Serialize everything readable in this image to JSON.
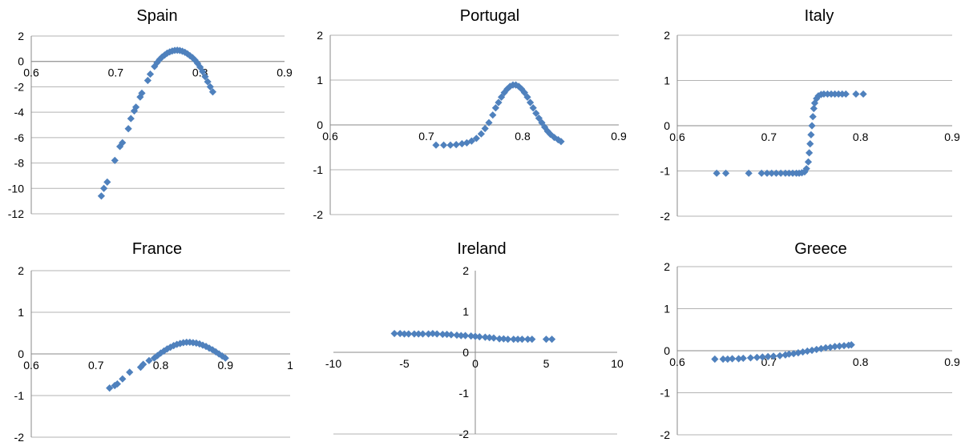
{
  "chart_data": [
    {
      "type": "scatter",
      "title": "Spain",
      "xlim": [
        0.6,
        0.9
      ],
      "ylim": [
        -12,
        2
      ],
      "xticks": [
        0.6,
        0.7,
        0.8,
        0.9
      ],
      "yticks": [
        -12,
        -10,
        -8,
        -6,
        -4,
        -2,
        0,
        2
      ],
      "grid": "horizontal",
      "marker_color": "#4F81BD",
      "points": [
        [
          0.683,
          -10.6
        ],
        [
          0.686,
          -10.0
        ],
        [
          0.69,
          -9.5
        ],
        [
          0.699,
          -7.8
        ],
        [
          0.705,
          -6.7
        ],
        [
          0.708,
          -6.4
        ],
        [
          0.715,
          -5.3
        ],
        [
          0.718,
          -4.5
        ],
        [
          0.722,
          -3.9
        ],
        [
          0.724,
          -3.6
        ],
        [
          0.729,
          -2.8
        ],
        [
          0.731,
          -2.5
        ],
        [
          0.738,
          -1.5
        ],
        [
          0.741,
          -1.0
        ],
        [
          0.746,
          -0.4
        ],
        [
          0.749,
          -0.1
        ],
        [
          0.752,
          0.15
        ],
        [
          0.755,
          0.35
        ],
        [
          0.758,
          0.5
        ],
        [
          0.761,
          0.65
        ],
        [
          0.764,
          0.75
        ],
        [
          0.767,
          0.82
        ],
        [
          0.77,
          0.87
        ],
        [
          0.773,
          0.88
        ],
        [
          0.776,
          0.86
        ],
        [
          0.779,
          0.8
        ],
        [
          0.782,
          0.72
        ],
        [
          0.785,
          0.6
        ],
        [
          0.788,
          0.45
        ],
        [
          0.791,
          0.3
        ],
        [
          0.794,
          0.1
        ],
        [
          0.797,
          -0.15
        ],
        [
          0.8,
          -0.45
        ],
        [
          0.803,
          -0.8
        ],
        [
          0.806,
          -1.2
        ],
        [
          0.809,
          -1.6
        ],
        [
          0.812,
          -2.0
        ],
        [
          0.815,
          -2.4
        ]
      ]
    },
    {
      "type": "scatter",
      "title": "Portugal",
      "xlim": [
        0.6,
        0.9
      ],
      "ylim": [
        -2,
        2
      ],
      "xticks": [
        0.6,
        0.7,
        0.8,
        0.9
      ],
      "yticks": [
        -2,
        -1,
        0,
        1,
        2
      ],
      "grid": "horizontal",
      "marker_color": "#4F81BD",
      "points": [
        [
          0.71,
          -0.45
        ],
        [
          0.718,
          -0.45
        ],
        [
          0.725,
          -0.45
        ],
        [
          0.731,
          -0.44
        ],
        [
          0.737,
          -0.42
        ],
        [
          0.742,
          -0.4
        ],
        [
          0.747,
          -0.36
        ],
        [
          0.752,
          -0.3
        ],
        [
          0.757,
          -0.2
        ],
        [
          0.761,
          -0.08
        ],
        [
          0.765,
          0.05
        ],
        [
          0.769,
          0.22
        ],
        [
          0.772,
          0.38
        ],
        [
          0.775,
          0.5
        ],
        [
          0.778,
          0.62
        ],
        [
          0.781,
          0.72
        ],
        [
          0.784,
          0.8
        ],
        [
          0.787,
          0.86
        ],
        [
          0.79,
          0.89
        ],
        [
          0.793,
          0.89
        ],
        [
          0.796,
          0.86
        ],
        [
          0.799,
          0.8
        ],
        [
          0.802,
          0.72
        ],
        [
          0.805,
          0.62
        ],
        [
          0.808,
          0.5
        ],
        [
          0.811,
          0.38
        ],
        [
          0.814,
          0.26
        ],
        [
          0.817,
          0.15
        ],
        [
          0.82,
          0.05
        ],
        [
          0.823,
          -0.05
        ],
        [
          0.826,
          -0.14
        ],
        [
          0.829,
          -0.21
        ],
        [
          0.833,
          -0.28
        ],
        [
          0.837,
          -0.33
        ],
        [
          0.84,
          -0.37
        ]
      ]
    },
    {
      "type": "scatter",
      "title": "Italy",
      "xlim": [
        0.6,
        0.9
      ],
      "ylim": [
        -2,
        2
      ],
      "xticks": [
        0.6,
        0.7,
        0.8,
        0.9
      ],
      "yticks": [
        -2,
        -1,
        0,
        1,
        2
      ],
      "grid": "horizontal",
      "marker_color": "#4F81BD",
      "points": [
        [
          0.643,
          -1.05
        ],
        [
          0.653,
          -1.05
        ],
        [
          0.678,
          -1.05
        ],
        [
          0.692,
          -1.05
        ],
        [
          0.698,
          -1.05
        ],
        [
          0.703,
          -1.05
        ],
        [
          0.708,
          -1.05
        ],
        [
          0.713,
          -1.05
        ],
        [
          0.718,
          -1.05
        ],
        [
          0.722,
          -1.05
        ],
        [
          0.726,
          -1.05
        ],
        [
          0.73,
          -1.05
        ],
        [
          0.733,
          -1.05
        ],
        [
          0.736,
          -1.04
        ],
        [
          0.739,
          -1.02
        ],
        [
          0.741,
          -0.95
        ],
        [
          0.743,
          -0.8
        ],
        [
          0.744,
          -0.6
        ],
        [
          0.745,
          -0.4
        ],
        [
          0.746,
          -0.2
        ],
        [
          0.747,
          0.0
        ],
        [
          0.748,
          0.2
        ],
        [
          0.749,
          0.38
        ],
        [
          0.75,
          0.5
        ],
        [
          0.752,
          0.6
        ],
        [
          0.754,
          0.66
        ],
        [
          0.757,
          0.69
        ],
        [
          0.76,
          0.7
        ],
        [
          0.764,
          0.7
        ],
        [
          0.768,
          0.7
        ],
        [
          0.772,
          0.7
        ],
        [
          0.776,
          0.7
        ],
        [
          0.78,
          0.7
        ],
        [
          0.784,
          0.7
        ],
        [
          0.795,
          0.7
        ],
        [
          0.803,
          0.7
        ]
      ]
    },
    {
      "type": "scatter",
      "title": "France",
      "xlim": [
        0.6,
        1
      ],
      "ylim": [
        -2,
        2
      ],
      "xticks": [
        0.6,
        0.7,
        0.8,
        0.9,
        1
      ],
      "yticks": [
        -2,
        -1,
        0,
        1,
        2
      ],
      "grid": "horizontal",
      "marker_color": "#4F81BD",
      "points": [
        [
          0.721,
          -0.82
        ],
        [
          0.729,
          -0.76
        ],
        [
          0.733,
          -0.72
        ],
        [
          0.741,
          -0.6
        ],
        [
          0.752,
          -0.44
        ],
        [
          0.769,
          -0.32
        ],
        [
          0.773,
          -0.25
        ],
        [
          0.782,
          -0.16
        ],
        [
          0.79,
          -0.1
        ],
        [
          0.795,
          -0.04
        ],
        [
          0.8,
          0.02
        ],
        [
          0.805,
          0.07
        ],
        [
          0.81,
          0.12
        ],
        [
          0.815,
          0.16
        ],
        [
          0.82,
          0.2
        ],
        [
          0.825,
          0.23
        ],
        [
          0.83,
          0.25
        ],
        [
          0.835,
          0.27
        ],
        [
          0.84,
          0.28
        ],
        [
          0.845,
          0.28
        ],
        [
          0.85,
          0.27
        ],
        [
          0.855,
          0.26
        ],
        [
          0.86,
          0.24
        ],
        [
          0.865,
          0.21
        ],
        [
          0.87,
          0.18
        ],
        [
          0.875,
          0.14
        ],
        [
          0.88,
          0.1
        ],
        [
          0.885,
          0.05
        ],
        [
          0.89,
          0.0
        ],
        [
          0.895,
          -0.05
        ],
        [
          0.9,
          -0.1
        ]
      ]
    },
    {
      "type": "scatter",
      "title": "Ireland",
      "xlim": [
        -10,
        10
      ],
      "ylim": [
        -2,
        2
      ],
      "xticks": [
        -10,
        -5,
        0,
        5,
        10
      ],
      "yticks": [
        -2,
        -1,
        0,
        1,
        2
      ],
      "grid": "none",
      "marker_color": "#4F81BD",
      "points": [
        [
          -5.7,
          0.46
        ],
        [
          -5.3,
          0.46
        ],
        [
          -5.0,
          0.45
        ],
        [
          -4.7,
          0.45
        ],
        [
          -4.3,
          0.45
        ],
        [
          -4.0,
          0.45
        ],
        [
          -3.7,
          0.45
        ],
        [
          -3.3,
          0.45
        ],
        [
          -3.0,
          0.46
        ],
        [
          -2.7,
          0.45
        ],
        [
          -2.3,
          0.44
        ],
        [
          -2.0,
          0.44
        ],
        [
          -1.7,
          0.43
        ],
        [
          -1.3,
          0.42
        ],
        [
          -1.0,
          0.41
        ],
        [
          -0.7,
          0.41
        ],
        [
          -0.3,
          0.4
        ],
        [
          0.0,
          0.39
        ],
        [
          0.3,
          0.38
        ],
        [
          0.7,
          0.37
        ],
        [
          1.0,
          0.36
        ],
        [
          1.3,
          0.35
        ],
        [
          1.7,
          0.33
        ],
        [
          2.0,
          0.33
        ],
        [
          2.3,
          0.32
        ],
        [
          2.7,
          0.32
        ],
        [
          3.0,
          0.32
        ],
        [
          3.3,
          0.32
        ],
        [
          3.7,
          0.32
        ],
        [
          4.0,
          0.32
        ],
        [
          5.0,
          0.32
        ],
        [
          5.4,
          0.32
        ]
      ]
    },
    {
      "type": "scatter",
      "title": "Greece",
      "xlim": [
        0.6,
        0.9
      ],
      "ylim": [
        -2,
        2
      ],
      "xticks": [
        0.6,
        0.7,
        0.8,
        0.9
      ],
      "yticks": [
        -2,
        -1,
        0,
        1,
        2
      ],
      "grid": "horizontal",
      "marker_color": "#4F81BD",
      "points": [
        [
          0.641,
          -0.2
        ],
        [
          0.65,
          -0.2
        ],
        [
          0.655,
          -0.2
        ],
        [
          0.66,
          -0.19
        ],
        [
          0.667,
          -0.19
        ],
        [
          0.672,
          -0.18
        ],
        [
          0.68,
          -0.17
        ],
        [
          0.687,
          -0.16
        ],
        [
          0.693,
          -0.15
        ],
        [
          0.699,
          -0.14
        ],
        [
          0.705,
          -0.13
        ],
        [
          0.712,
          -0.12
        ],
        [
          0.718,
          -0.1
        ],
        [
          0.722,
          -0.08
        ],
        [
          0.727,
          -0.07
        ],
        [
          0.732,
          -0.05
        ],
        [
          0.737,
          -0.03
        ],
        [
          0.742,
          -0.01
        ],
        [
          0.747,
          0.01
        ],
        [
          0.752,
          0.03
        ],
        [
          0.757,
          0.05
        ],
        [
          0.762,
          0.07
        ],
        [
          0.767,
          0.08
        ],
        [
          0.772,
          0.1
        ],
        [
          0.777,
          0.11
        ],
        [
          0.782,
          0.12
        ],
        [
          0.787,
          0.13
        ],
        [
          0.79,
          0.14
        ]
      ]
    }
  ]
}
